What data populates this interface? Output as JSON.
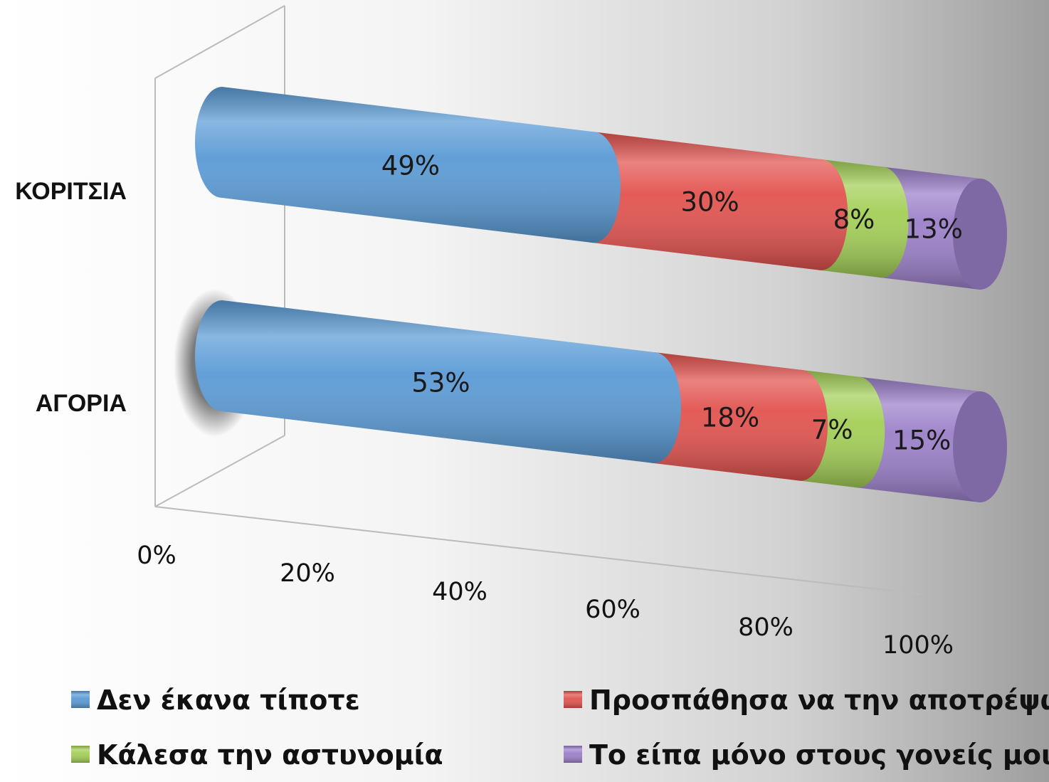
{
  "chart_data": {
    "type": "bar",
    "orientation": "horizontal",
    "stacked": "percent",
    "style": "3d-cylinder",
    "categories": [
      "ΚΟΡΙΤΣΙΑ",
      "ΑΓΟΡΙΑ"
    ],
    "series": [
      {
        "name": "Δεν έκανα τίποτε",
        "values": [
          49,
          53
        ],
        "labels": [
          "49%",
          "53%"
        ],
        "color": "#5b9bd5"
      },
      {
        "name": "Προσπάθησα να την αποτρέψω",
        "values": [
          30,
          18
        ],
        "labels": [
          "30%",
          "18%"
        ],
        "color": "#e2534f"
      },
      {
        "name": "Κάλεσα την αστυνομία",
        "values": [
          8,
          7
        ],
        "labels": [
          "8%",
          "7%"
        ],
        "color": "#a3cf57"
      },
      {
        "name": "Το είπα μόνο στους γονείς μου",
        "values": [
          13,
          15
        ],
        "labels": [
          "13%",
          "15%"
        ],
        "color": "#9b80c9"
      }
    ],
    "x_ticks": [
      "0%",
      "20%",
      "40%",
      "60%",
      "80%",
      "100%"
    ],
    "xlim": [
      0,
      100
    ],
    "title": "",
    "xlabel": "",
    "ylabel": "",
    "legend": "bottom",
    "grid": false
  }
}
